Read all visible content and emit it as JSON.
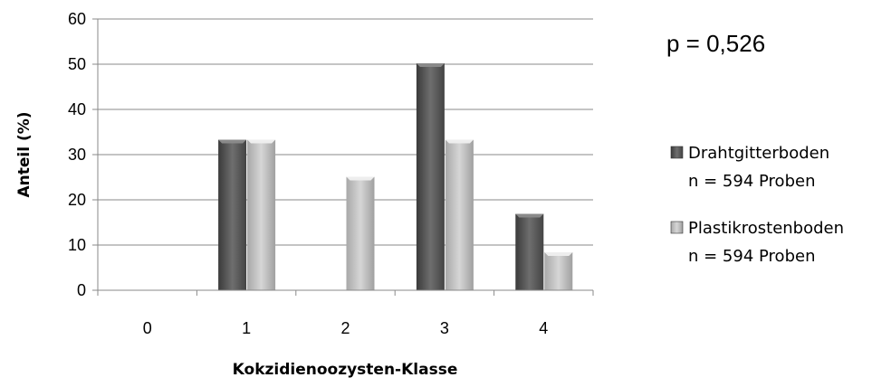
{
  "chart_data": {
    "type": "bar",
    "categories": [
      "0",
      "1",
      "2",
      "3",
      "4"
    ],
    "series": [
      {
        "name": "Drahtgitterboden",
        "sub": "n = 594 Proben",
        "values": [
          0,
          33.3,
          0,
          50.2,
          16.9
        ],
        "color": "#555555"
      },
      {
        "name": "Plastikrostenboden",
        "sub": "n = 594 Proben",
        "values": [
          0,
          33.3,
          25.1,
          33.3,
          8.4
        ],
        "color": "#bdbdbd"
      }
    ],
    "xlabel": "Kokzidienoozysten-Klasse",
    "ylabel": "Anteil (%)",
    "ylim": [
      0,
      60
    ],
    "yticks": [
      0,
      10,
      20,
      30,
      40,
      50,
      60
    ],
    "grid": true,
    "legend_position": "right",
    "annotation": "p = 0,526"
  }
}
